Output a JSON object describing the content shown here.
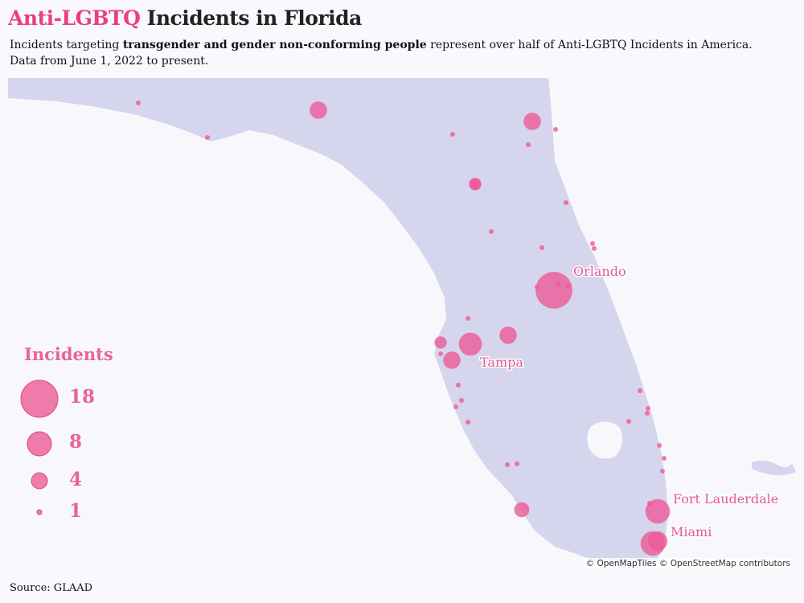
{
  "header": {
    "title_highlight": "Anti-LGBTQ",
    "title_rest": " Incidents in Florida",
    "subtitle_pre": "Incidents targeting ",
    "subtitle_bold": "transgender and gender non-conforming people",
    "subtitle_post": " represent over half of Anti-LGBTQ Incidents in America.",
    "subtitle_line2": "Data from June 1, 2022 to present."
  },
  "map": {
    "land_color": "#d5d5ee",
    "water_color": "#f8f7fc",
    "bubble_color": "#ec5a97",
    "cities": [
      "Orlando",
      "Tampa",
      "Fort Lauderdale",
      "Miami"
    ],
    "bubble_counts": [
      18,
      7,
      4,
      4,
      2,
      2,
      4,
      4,
      2,
      3,
      8,
      8,
      5,
      1,
      1,
      1,
      1,
      1,
      1,
      1,
      1,
      1,
      1,
      1,
      1,
      1,
      1,
      1,
      1,
      1,
      1,
      1,
      1,
      1,
      1,
      1,
      1,
      1,
      1,
      1,
      1,
      1
    ]
  },
  "legend": {
    "title": "Incidents",
    "items": [
      "18",
      "8",
      "4",
      "1"
    ]
  },
  "attribution": "© OpenMapTiles © OpenStreetMap contributors",
  "source": "Source: GLAAD"
}
